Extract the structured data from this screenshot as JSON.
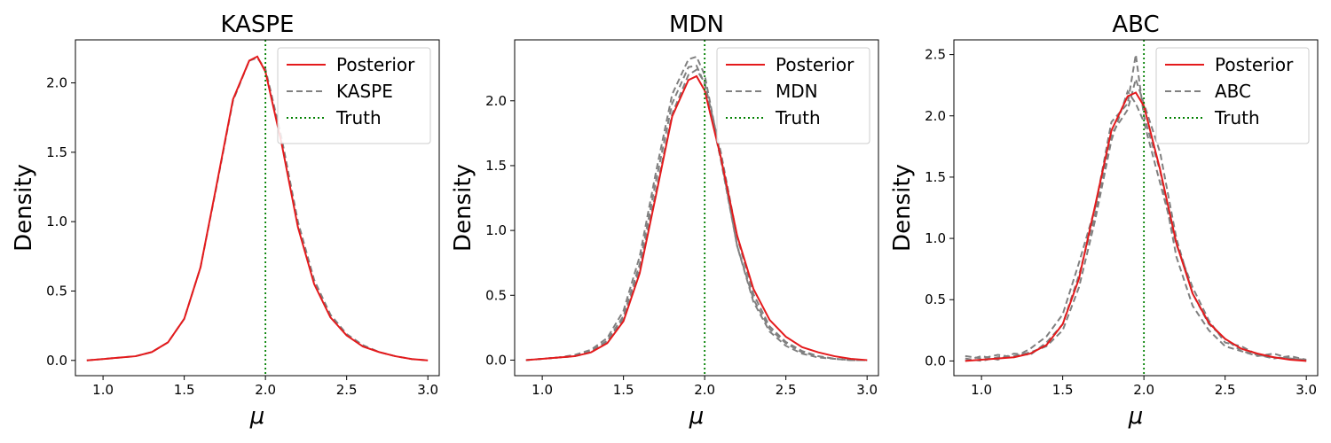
{
  "chart_data": [
    {
      "type": "line",
      "title": "KASPE",
      "xlabel": "μ",
      "ylabel": "Density",
      "xlim": [
        0.83,
        3.07
      ],
      "ylim": [
        -0.11,
        2.31
      ],
      "xticks": [
        1.0,
        1.5,
        2.0,
        2.5,
        3.0
      ],
      "xtick_labels": [
        "1.0",
        "1.5",
        "2.0",
        "2.5",
        "3.0"
      ],
      "yticks": [
        0.0,
        0.5,
        1.0,
        1.5,
        2.0
      ],
      "ytick_labels": [
        "0.0",
        "0.5",
        "1.0",
        "1.5",
        "2.0"
      ],
      "truth": 2.0,
      "legend": {
        "position": "top-right",
        "entries": [
          {
            "label": "Posterior",
            "style": "solid",
            "color": "#e41a1c"
          },
          {
            "label": "KASPE",
            "style": "dashed",
            "color": "#808080"
          },
          {
            "label": "Truth",
            "style": "dotted",
            "color": "#008000"
          }
        ]
      },
      "x": [
        0.9,
        1.0,
        1.1,
        1.2,
        1.3,
        1.4,
        1.5,
        1.6,
        1.7,
        1.8,
        1.9,
        1.95,
        2.0,
        2.1,
        2.2,
        2.3,
        2.4,
        2.5,
        2.6,
        2.7,
        2.8,
        2.9,
        3.0
      ],
      "series": [
        {
          "name": "Posterior",
          "color": "#e41a1c",
          "style": "solid",
          "values": [
            0.0,
            0.01,
            0.02,
            0.03,
            0.06,
            0.13,
            0.3,
            0.67,
            1.27,
            1.88,
            2.16,
            2.19,
            2.08,
            1.56,
            0.96,
            0.55,
            0.31,
            0.18,
            0.1,
            0.06,
            0.03,
            0.01,
            0.0
          ]
        },
        {
          "name": "KASPE",
          "color": "#808080",
          "style": "dashed",
          "values": [
            0.0,
            0.01,
            0.02,
            0.03,
            0.06,
            0.13,
            0.3,
            0.67,
            1.26,
            1.87,
            2.16,
            2.18,
            2.1,
            1.6,
            1.0,
            0.58,
            0.33,
            0.19,
            0.11,
            0.06,
            0.03,
            0.01,
            0.0
          ]
        }
      ]
    },
    {
      "type": "line",
      "title": "MDN",
      "xlabel": "μ",
      "ylabel": "Density",
      "xlim": [
        0.83,
        3.07
      ],
      "ylim": [
        -0.12,
        2.47
      ],
      "xticks": [
        1.0,
        1.5,
        2.0,
        2.5,
        3.0
      ],
      "xtick_labels": [
        "1.0",
        "1.5",
        "2.0",
        "2.5",
        "3.0"
      ],
      "yticks": [
        0.0,
        0.5,
        1.0,
        1.5,
        2.0
      ],
      "ytick_labels": [
        "0.0",
        "0.5",
        "1.0",
        "1.5",
        "2.0"
      ],
      "truth": 2.0,
      "legend": {
        "position": "top-right",
        "entries": [
          {
            "label": "Posterior",
            "style": "solid",
            "color": "#e41a1c"
          },
          {
            "label": "MDN",
            "style": "dashed",
            "color": "#808080"
          },
          {
            "label": "Truth",
            "style": "dotted",
            "color": "#008000"
          }
        ]
      },
      "x": [
        0.9,
        1.0,
        1.1,
        1.2,
        1.3,
        1.4,
        1.5,
        1.6,
        1.7,
        1.8,
        1.9,
        1.95,
        2.0,
        2.1,
        2.2,
        2.3,
        2.4,
        2.5,
        2.6,
        2.7,
        2.8,
        2.9,
        3.0
      ],
      "series": [
        {
          "name": "Posterior",
          "color": "#e41a1c",
          "style": "solid",
          "values": [
            0.0,
            0.01,
            0.02,
            0.03,
            0.06,
            0.13,
            0.3,
            0.67,
            1.27,
            1.88,
            2.16,
            2.19,
            2.08,
            1.56,
            0.96,
            0.55,
            0.31,
            0.18,
            0.1,
            0.06,
            0.03,
            0.01,
            0.0
          ]
        },
        {
          "name": "MDN",
          "color": "#808080",
          "style": "dashed",
          "values": [
            0.0,
            0.01,
            0.02,
            0.04,
            0.08,
            0.17,
            0.38,
            0.8,
            1.45,
            2.05,
            2.32,
            2.34,
            2.2,
            1.56,
            0.88,
            0.45,
            0.22,
            0.11,
            0.05,
            0.02,
            0.01,
            0.0,
            0.0
          ]
        },
        {
          "name": "",
          "color": "#808080",
          "style": "dashed",
          "values": [
            0.0,
            0.01,
            0.02,
            0.03,
            0.07,
            0.15,
            0.34,
            0.74,
            1.38,
            1.98,
            2.26,
            2.27,
            2.13,
            1.54,
            0.88,
            0.47,
            0.24,
            0.13,
            0.06,
            0.03,
            0.01,
            0.0,
            0.0
          ]
        },
        {
          "name": "",
          "color": "#808080",
          "style": "dashed",
          "values": [
            0.0,
            0.01,
            0.02,
            0.03,
            0.06,
            0.14,
            0.32,
            0.7,
            1.3,
            1.9,
            2.2,
            2.24,
            2.14,
            1.6,
            0.95,
            0.51,
            0.26,
            0.14,
            0.07,
            0.03,
            0.01,
            0.0,
            0.0
          ]
        }
      ]
    },
    {
      "type": "line",
      "title": "ABC",
      "xlabel": "μ",
      "ylabel": "Density",
      "xlim": [
        0.83,
        3.07
      ],
      "ylim": [
        -0.12,
        2.62
      ],
      "xticks": [
        1.0,
        1.5,
        2.0,
        2.5,
        3.0
      ],
      "xtick_labels": [
        "1.0",
        "1.5",
        "2.0",
        "2.5",
        "3.0"
      ],
      "yticks": [
        0.0,
        0.5,
        1.0,
        1.5,
        2.0,
        2.5
      ],
      "ytick_labels": [
        "0.0",
        "0.5",
        "1.0",
        "1.5",
        "2.0",
        "2.5"
      ],
      "truth": 2.0,
      "legend": {
        "position": "top-right",
        "entries": [
          {
            "label": "Posterior",
            "style": "solid",
            "color": "#e41a1c"
          },
          {
            "label": "ABC",
            "style": "dashed",
            "color": "#808080"
          },
          {
            "label": "Truth",
            "style": "dotted",
            "color": "#008000"
          }
        ]
      },
      "x": [
        0.9,
        1.0,
        1.1,
        1.2,
        1.3,
        1.4,
        1.5,
        1.6,
        1.7,
        1.8,
        1.9,
        1.95,
        2.0,
        2.1,
        2.2,
        2.3,
        2.4,
        2.5,
        2.6,
        2.7,
        2.8,
        2.9,
        3.0
      ],
      "series": [
        {
          "name": "Posterior",
          "color": "#e41a1c",
          "style": "solid",
          "values": [
            0.0,
            0.01,
            0.02,
            0.03,
            0.06,
            0.13,
            0.3,
            0.67,
            1.27,
            1.88,
            2.16,
            2.19,
            2.08,
            1.56,
            0.96,
            0.55,
            0.31,
            0.18,
            0.1,
            0.06,
            0.03,
            0.01,
            0.0
          ]
        },
        {
          "name": "ABC",
          "color": "#808080",
          "style": "dashed",
          "values": [
            0.04,
            0.02,
            0.05,
            0.03,
            0.1,
            0.2,
            0.38,
            0.8,
            1.25,
            1.95,
            2.1,
            2.5,
            2.0,
            1.55,
            0.85,
            0.45,
            0.25,
            0.12,
            0.08,
            0.04,
            0.06,
            0.02,
            0.0
          ]
        },
        {
          "name": "",
          "color": "#808080",
          "style": "dashed",
          "values": [
            0.0,
            0.04,
            0.01,
            0.06,
            0.05,
            0.15,
            0.3,
            0.7,
            1.2,
            1.85,
            2.05,
            2.3,
            2.1,
            1.7,
            1.0,
            0.55,
            0.3,
            0.18,
            0.08,
            0.05,
            0.02,
            0.04,
            0.01
          ]
        },
        {
          "name": "",
          "color": "#808080",
          "style": "dashed",
          "values": [
            0.02,
            0.0,
            0.03,
            0.04,
            0.07,
            0.12,
            0.25,
            0.6,
            1.15,
            1.8,
            2.2,
            2.1,
            1.95,
            1.45,
            0.95,
            0.6,
            0.33,
            0.15,
            0.12,
            0.05,
            0.03,
            0.02,
            0.01
          ]
        }
      ]
    }
  ]
}
